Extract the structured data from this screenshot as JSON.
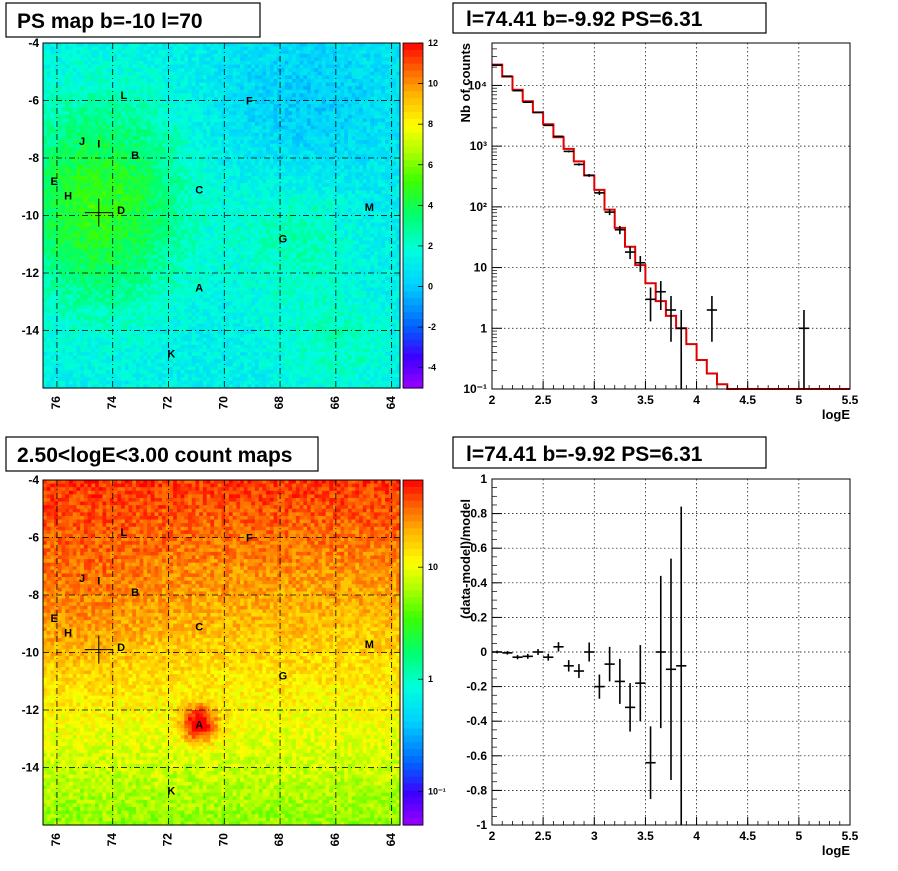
{
  "chart_data": [
    {
      "type": "heatmap",
      "title": "PS map b=-10 l=70",
      "xlim": [
        76.5,
        63.7
      ],
      "ylim": [
        -16,
        -4
      ],
      "x_ticks": [
        "76",
        "74",
        "72",
        "70",
        "68",
        "66",
        "64"
      ],
      "y_ticks": [
        "-4",
        "-6",
        "-8",
        "-10",
        "-12",
        "-14"
      ],
      "colorbar": {
        "min": -5,
        "max": 12,
        "ticks": [
          "12",
          "10",
          "8",
          "6",
          "4",
          "2",
          "0",
          "-2",
          "-4"
        ]
      },
      "crosshair": {
        "l": 74.5,
        "b": -9.9
      },
      "sources": [
        {
          "label": "L",
          "l": 73.6,
          "b": -5.8
        },
        {
          "label": "F",
          "l": 69.1,
          "b": -6.0
        },
        {
          "label": "J",
          "l": 75.1,
          "b": -7.4
        },
        {
          "label": "I",
          "l": 74.5,
          "b": -7.5
        },
        {
          "label": "B",
          "l": 73.2,
          "b": -7.9
        },
        {
          "label": "E",
          "l": 76.1,
          "b": -8.8
        },
        {
          "label": "H",
          "l": 75.6,
          "b": -9.3
        },
        {
          "label": "C",
          "l": 70.9,
          "b": -9.1
        },
        {
          "label": "D",
          "l": 73.7,
          "b": -9.8
        },
        {
          "label": "M",
          "l": 64.8,
          "b": -9.7
        },
        {
          "label": "G",
          "l": 67.9,
          "b": -10.8
        },
        {
          "label": "A",
          "l": 70.9,
          "b": -12.5
        },
        {
          "label": "K",
          "l": 71.9,
          "b": -14.8
        }
      ]
    },
    {
      "type": "line",
      "title": "l=74.41 b=-9.92 PS=6.31",
      "xlabel": "logE",
      "ylabel": "Nb of counts",
      "xlim": [
        2,
        5.5
      ],
      "ylim": [
        0.1,
        50000
      ],
      "yscale": "log",
      "x_ticks": [
        "2",
        "2.5",
        "3",
        "3.5",
        "4",
        "4.5",
        "5",
        "5.5"
      ],
      "y_ticks": [
        {
          "v": 0.1,
          "t": "10⁻¹"
        },
        {
          "v": 1,
          "t": "1"
        },
        {
          "v": 10,
          "t": "10"
        },
        {
          "v": 100,
          "t": "10²"
        },
        {
          "v": 1000,
          "t": "10³"
        },
        {
          "v": 10000,
          "t": "10⁴"
        }
      ],
      "model_edges": [
        2.0,
        2.1,
        2.2,
        2.3,
        2.4,
        2.5,
        2.6,
        2.7,
        2.8,
        2.9,
        3.0,
        3.1,
        3.2,
        3.3,
        3.4,
        3.5,
        3.6,
        3.7,
        3.8,
        3.9,
        4.0,
        4.1,
        4.2,
        4.3,
        4.4,
        5.5
      ],
      "model_values": [
        22000,
        14000,
        8500,
        5500,
        3600,
        2300,
        1400,
        900,
        560,
        330,
        190,
        90,
        45,
        22,
        11,
        5.5,
        2.8,
        1.6,
        1.0,
        0.55,
        0.3,
        0.18,
        0.12,
        0.1,
        0.1
      ],
      "data_points": [
        {
          "x": 2.05,
          "y": 21500,
          "lo": 21300,
          "hi": 21700
        },
        {
          "x": 2.15,
          "y": 14200,
          "lo": 14050,
          "hi": 14350
        },
        {
          "x": 2.25,
          "y": 8200,
          "lo": 8100,
          "hi": 8300
        },
        {
          "x": 2.35,
          "y": 5300,
          "lo": 5230,
          "hi": 5370
        },
        {
          "x": 2.45,
          "y": 3600,
          "lo": 3540,
          "hi": 3660
        },
        {
          "x": 2.55,
          "y": 2200,
          "lo": 2150,
          "hi": 2250
        },
        {
          "x": 2.65,
          "y": 1450,
          "lo": 1410,
          "hi": 1490
        },
        {
          "x": 2.75,
          "y": 820,
          "lo": 790,
          "hi": 850
        },
        {
          "x": 2.85,
          "y": 500,
          "lo": 478,
          "hi": 522
        },
        {
          "x": 2.95,
          "y": 330,
          "lo": 312,
          "hi": 348
        },
        {
          "x": 3.05,
          "y": 170,
          "lo": 157,
          "hi": 183
        },
        {
          "x": 3.15,
          "y": 82,
          "lo": 73,
          "hi": 91
        },
        {
          "x": 3.25,
          "y": 42,
          "lo": 35.5,
          "hi": 48.5
        },
        {
          "x": 3.35,
          "y": 18,
          "lo": 13.8,
          "hi": 22.2
        },
        {
          "x": 3.45,
          "y": 12,
          "lo": 8.5,
          "hi": 15.5
        },
        {
          "x": 3.55,
          "y": 3,
          "lo": 1.3,
          "hi": 4.7
        },
        {
          "x": 3.65,
          "y": 4,
          "lo": 2.0,
          "hi": 6.0
        },
        {
          "x": 3.75,
          "y": 2,
          "lo": 0.6,
          "hi": 3.4
        },
        {
          "x": 3.85,
          "y": 1,
          "lo": 0.1,
          "hi": 2.0
        },
        {
          "x": 4.15,
          "y": 2,
          "lo": 0.6,
          "hi": 3.4
        },
        {
          "x": 5.05,
          "y": 1,
          "lo": 0.1,
          "hi": 2.0
        }
      ]
    },
    {
      "type": "heatmap",
      "title": "2.50<logE<3.00 count maps",
      "xlim": [
        76.5,
        63.7
      ],
      "ylim": [
        -16,
        -4
      ],
      "x_ticks": [
        "76",
        "74",
        "72",
        "70",
        "68",
        "66",
        "64"
      ],
      "y_ticks": [
        "-4",
        "-6",
        "-8",
        "-10",
        "-12",
        "-14"
      ],
      "colorbar": {
        "scale": "log",
        "min": 0.05,
        "max": 60,
        "ticks": [
          {
            "v": 10,
            "t": "10"
          },
          {
            "v": 1,
            "t": "1"
          },
          {
            "v": 0.1,
            "t": "10⁻¹"
          }
        ]
      },
      "crosshair": {
        "l": 74.5,
        "b": -9.9
      },
      "sources": [
        {
          "label": "L",
          "l": 73.6,
          "b": -5.8
        },
        {
          "label": "F",
          "l": 69.1,
          "b": -6.0
        },
        {
          "label": "J",
          "l": 75.1,
          "b": -7.4
        },
        {
          "label": "I",
          "l": 74.5,
          "b": -7.5
        },
        {
          "label": "B",
          "l": 73.2,
          "b": -7.9
        },
        {
          "label": "E",
          "l": 76.1,
          "b": -8.8
        },
        {
          "label": "H",
          "l": 75.6,
          "b": -9.3
        },
        {
          "label": "C",
          "l": 70.9,
          "b": -9.1
        },
        {
          "label": "D",
          "l": 73.7,
          "b": -9.8
        },
        {
          "label": "M",
          "l": 64.8,
          "b": -9.7
        },
        {
          "label": "G",
          "l": 67.9,
          "b": -10.8
        },
        {
          "label": "A",
          "l": 70.9,
          "b": -12.5
        },
        {
          "label": "K",
          "l": 71.9,
          "b": -14.8
        }
      ]
    },
    {
      "type": "scatter",
      "title": "l=74.41 b=-9.92 PS=6.31",
      "xlabel": "logE",
      "ylabel": "(data-model)/model",
      "xlim": [
        2,
        5.5
      ],
      "ylim": [
        -1,
        1
      ],
      "x_ticks": [
        "2",
        "2.5",
        "3",
        "3.5",
        "4",
        "4.5",
        "5",
        "5.5"
      ],
      "y_ticks": [
        "-1",
        "-0.8",
        "-0.6",
        "-0.4",
        "-0.2",
        "0",
        "0.2",
        "0.4",
        "0.6",
        "0.8",
        "1"
      ],
      "data_points": [
        {
          "x": 2.05,
          "y": 0.0,
          "err": 0.008
        },
        {
          "x": 2.15,
          "y": -0.005,
          "err": 0.01
        },
        {
          "x": 2.25,
          "y": -0.03,
          "err": 0.012
        },
        {
          "x": 2.35,
          "y": -0.025,
          "err": 0.014
        },
        {
          "x": 2.45,
          "y": 0.0,
          "err": 0.017
        },
        {
          "x": 2.55,
          "y": -0.03,
          "err": 0.02
        },
        {
          "x": 2.65,
          "y": 0.03,
          "err": 0.027
        },
        {
          "x": 2.75,
          "y": -0.08,
          "err": 0.033
        },
        {
          "x": 2.85,
          "y": -0.11,
          "err": 0.04
        },
        {
          "x": 2.95,
          "y": 0.0,
          "err": 0.055
        },
        {
          "x": 3.05,
          "y": -0.2,
          "err": 0.07
        },
        {
          "x": 3.15,
          "y": -0.07,
          "err": 0.1
        },
        {
          "x": 3.25,
          "y": -0.17,
          "err": 0.13
        },
        {
          "x": 3.35,
          "y": -0.32,
          "err": 0.14
        },
        {
          "x": 3.45,
          "y": -0.18,
          "err": 0.22
        },
        {
          "x": 3.55,
          "y": -0.64,
          "err": 0.21
        },
        {
          "x": 3.65,
          "y": 0.0,
          "err": 0.44
        },
        {
          "x": 3.75,
          "y": -0.1,
          "err": 0.64
        },
        {
          "x": 3.85,
          "y": -0.08,
          "err": 0.92
        }
      ]
    }
  ]
}
